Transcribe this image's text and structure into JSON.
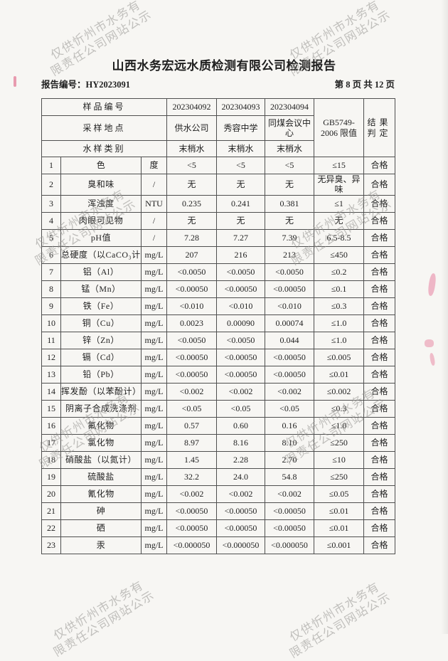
{
  "page": {
    "title": "山西水务宏远水质检测有限公司检测报告",
    "report_no": "报告编号：HY2023091",
    "page_info": "第 8 页 共 12 页"
  },
  "watermark": {
    "line1": "仅供忻州市水务有",
    "line2": "限责任公司网站公示"
  },
  "colors": {
    "paper": "#f7f6f3",
    "table_border": "#4f4f4f",
    "text": "#1f1f1f",
    "watermark": "#94928e",
    "stamp_red": "#e06a8a"
  },
  "table": {
    "head": {
      "sample_no_label": "样品编号",
      "sample_ids": [
        "202304092",
        "202304093",
        "202304094"
      ],
      "location_label": "采样地点",
      "locations": [
        "供水公司",
        "秀容中学",
        "同煤会议中心"
      ],
      "category_label": "水样类别",
      "categories": [
        "末梢水",
        "末梢水",
        "末梢水"
      ],
      "limit_line1": "GB5749-",
      "limit_line2": "2006 限值",
      "result_line1": "结果",
      "result_line2": "判定"
    },
    "rows": [
      [
        "1",
        "色",
        "度",
        "<5",
        "<5",
        "<5",
        "≤15",
        "合格"
      ],
      [
        "2",
        "臭和味",
        "/",
        "无",
        "无",
        "无",
        "无异臭、异味",
        "合格"
      ],
      [
        "3",
        "浑浊度",
        "NTU",
        "0.235",
        "0.241",
        "0.381",
        "≤1",
        "合格"
      ],
      [
        "4",
        "肉眼可见物",
        "/",
        "无",
        "无",
        "无",
        "无",
        "合格"
      ],
      [
        "5",
        "pH值",
        "/",
        "7.28",
        "7.27",
        "7.39",
        "6.5-8.5",
        "合格"
      ],
      [
        "6",
        "总硬度（以CaCO₃计）",
        "mg/L",
        "207",
        "216",
        "213",
        "≤450",
        "合格"
      ],
      [
        "7",
        "铝（Al）",
        "mg/L",
        "<0.0050",
        "<0.0050",
        "<0.0050",
        "≤0.2",
        "合格"
      ],
      [
        "8",
        "锰（Mn）",
        "mg/L",
        "<0.00050",
        "<0.00050",
        "<0.00050",
        "≤0.1",
        "合格"
      ],
      [
        "9",
        "铁（Fe）",
        "mg/L",
        "<0.010",
        "<0.010",
        "<0.010",
        "≤0.3",
        "合格"
      ],
      [
        "10",
        "铜（Cu）",
        "mg/L",
        "0.0023",
        "0.00090",
        "0.00074",
        "≤1.0",
        "合格"
      ],
      [
        "11",
        "锌（Zn）",
        "mg/L",
        "<0.0050",
        "<0.0050",
        "0.044",
        "≤1.0",
        "合格"
      ],
      [
        "12",
        "镉（Cd）",
        "mg/L",
        "<0.00050",
        "<0.00050",
        "<0.00050",
        "≤0.005",
        "合格"
      ],
      [
        "13",
        "铅（Pb）",
        "mg/L",
        "<0.00050",
        "<0.00050",
        "<0.00050",
        "≤0.01",
        "合格"
      ],
      [
        "14",
        "挥发酚（以苯酚计）",
        "mg/L",
        "<0.002",
        "<0.002",
        "<0.002",
        "≤0.002",
        "合格"
      ],
      [
        "15",
        "阴离子合成洗涤剂",
        "mg/L",
        "<0.05",
        "<0.05",
        "<0.05",
        "≤0.3",
        "合格"
      ],
      [
        "16",
        "氟化物",
        "mg/L",
        "0.57",
        "0.60",
        "0.16",
        "≤1.0",
        "合格"
      ],
      [
        "17",
        "氯化物",
        "mg/L",
        "8.97",
        "8.16",
        "8.10",
        "≤250",
        "合格"
      ],
      [
        "18",
        "硝酸盐（以氮计）",
        "mg/L",
        "1.45",
        "2.28",
        "2.70",
        "≤10",
        "合格"
      ],
      [
        "19",
        "硫酸盐",
        "mg/L",
        "32.2",
        "24.0",
        "54.8",
        "≤250",
        "合格"
      ],
      [
        "20",
        "氰化物",
        "mg/L",
        "<0.002",
        "<0.002",
        "<0.002",
        "≤0.05",
        "合格"
      ],
      [
        "21",
        "砷",
        "mg/L",
        "<0.00050",
        "<0.00050",
        "<0.00050",
        "≤0.01",
        "合格"
      ],
      [
        "22",
        "硒",
        "mg/L",
        "<0.00050",
        "<0.00050",
        "<0.00050",
        "≤0.01",
        "合格"
      ],
      [
        "23",
        "汞",
        "mg/L",
        "<0.000050",
        "<0.000050",
        "<0.000050",
        "≤0.001",
        "合格"
      ]
    ]
  }
}
